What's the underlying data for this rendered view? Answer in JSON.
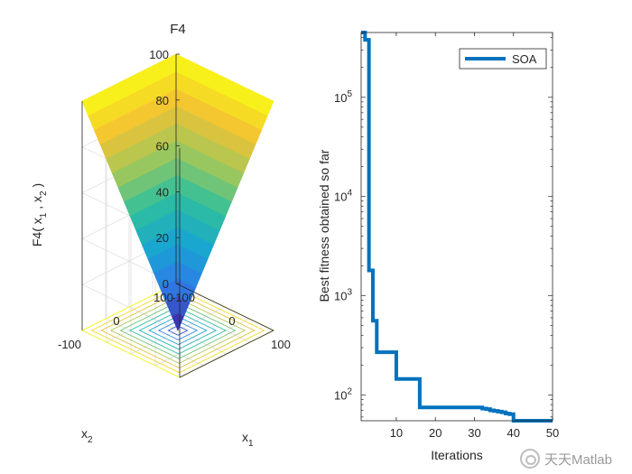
{
  "watermark": {
    "text": "天天Matlab",
    "icon": "wechat-icon"
  },
  "colors": {
    "axis": "#262626",
    "contour": [
      "#3e26a8",
      "#2f7be7",
      "#17a5d3",
      "#2fbf9d",
      "#a0c85b",
      "#f4c232",
      "#f9fb14"
    ],
    "surface_top": "#f9fb14",
    "surface_mid": "#25bdb0",
    "surface_bottom": "#3e26a8",
    "line": "#0072bd"
  },
  "chart_data": [
    {
      "type": "surface",
      "title": "F4",
      "function": "max(|x1|, |x2|)",
      "xlabel": "x",
      "xlabel_sub": "1",
      "ylabel": "x",
      "ylabel_sub": "2",
      "zlabel": {
        "pre": "F4( x",
        "sub1": "1",
        "mid": " , x",
        "sub2": "2",
        "post": " )"
      },
      "x_range": [
        -100,
        100
      ],
      "y_range": [
        -100,
        100
      ],
      "z_range": [
        0,
        100
      ],
      "z_ticks": [
        "0",
        "20",
        "40",
        "60",
        "80",
        "100"
      ],
      "x_ticks": [
        "-100",
        "0",
        "100"
      ],
      "y_ticks": [
        "-100",
        "0",
        "100"
      ],
      "contour_levels": [
        10,
        20,
        30,
        40,
        50,
        60,
        70,
        80,
        90,
        100
      ]
    },
    {
      "type": "line",
      "yscale": "log",
      "xlabel": "Iterations",
      "ylabel": "Best fitness obtained so far",
      "xlim": [
        1,
        50
      ],
      "ylim": [
        55,
        450000
      ],
      "x_ticks": [
        "10",
        "20",
        "30",
        "40",
        "50"
      ],
      "y_tick_base": "10",
      "y_tick_exponents": [
        "2",
        "3",
        "4",
        "5"
      ],
      "legend": {
        "location": "top-right",
        "entries": [
          "SOA"
        ]
      },
      "series": [
        {
          "name": "SOA",
          "x": [
            1,
            2,
            3,
            4,
            5,
            6,
            7,
            8,
            9,
            10,
            11,
            12,
            13,
            14,
            15,
            16,
            17,
            18,
            19,
            20,
            21,
            22,
            23,
            24,
            25,
            26,
            27,
            28,
            29,
            30,
            31,
            32,
            33,
            34,
            35,
            36,
            37,
            38,
            39,
            40,
            41,
            42,
            43,
            44,
            45,
            46,
            47,
            48,
            49,
            50
          ],
          "y": [
            450000,
            380000,
            1800,
            560,
            270,
            270,
            270,
            270,
            270,
            145,
            145,
            145,
            145,
            145,
            145,
            75,
            75,
            75,
            75,
            75,
            75,
            75,
            75,
            75,
            75,
            75,
            75,
            75,
            75,
            75,
            75,
            73,
            72,
            70,
            69,
            68,
            67,
            65,
            64,
            55,
            55,
            55,
            55,
            55,
            55,
            55,
            55,
            55,
            55,
            55
          ]
        }
      ]
    }
  ]
}
